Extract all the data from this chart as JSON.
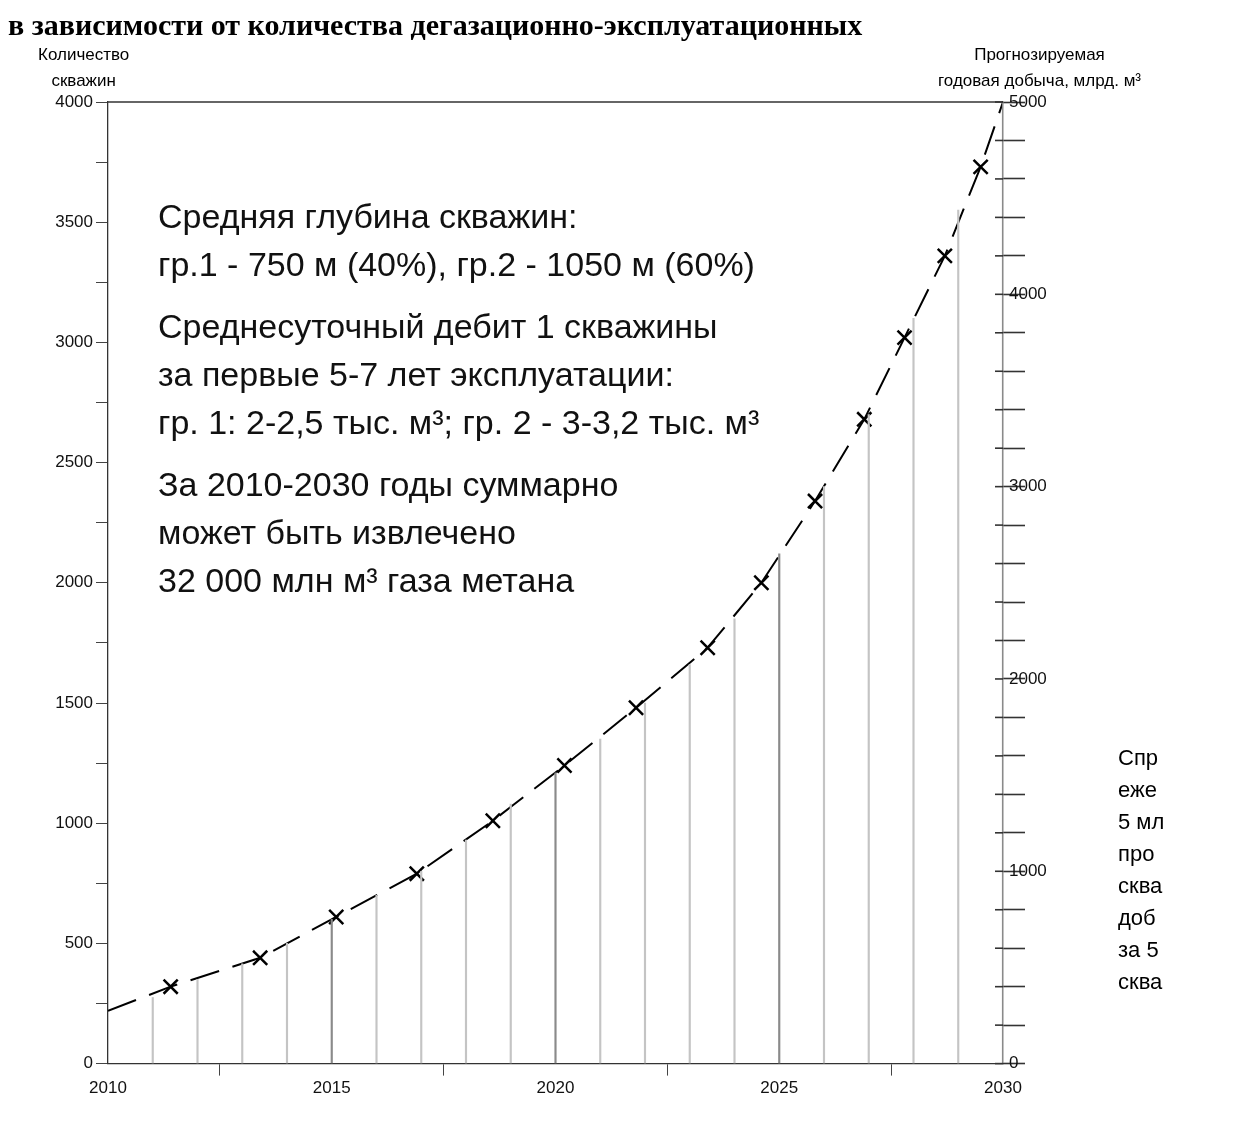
{
  "chart_data": {
    "type": "line",
    "title": "в зависимости от количества дегазационно-эксплуатационных",
    "xlabel": null,
    "ylabel": "Количество\nскважин",
    "y2label": "Прогнозируемая\nгодовая добыча, млрд. м³",
    "xlim": [
      2010,
      2030
    ],
    "xticks": [
      2010,
      2015,
      2020,
      2025,
      2030
    ],
    "ylim": [
      0,
      4000
    ],
    "yticks": [
      0,
      {
        "value": 250,
        "label": null
      },
      500,
      {
        "value": 750,
        "label": null
      },
      1000,
      {
        "value": 1250,
        "label": null
      },
      1500,
      {
        "value": 1750,
        "label": null
      },
      2000,
      {
        "value": 2250,
        "label": null
      },
      2500,
      {
        "value": 2750,
        "label": null
      },
      3000,
      {
        "value": 3250,
        "label": null
      },
      3500,
      {
        "value": 3750,
        "label": null
      },
      4000
    ],
    "y2lim": [
      0,
      5000
    ],
    "y2ticks": [
      0,
      {
        "value": 200,
        "label": null
      },
      {
        "value": 400,
        "label": null
      },
      {
        "value": 600,
        "label": null
      },
      {
        "value": 800,
        "label": null
      },
      1000,
      {
        "value": 1200,
        "label": null
      },
      {
        "value": 1400,
        "label": null
      },
      {
        "value": 1600,
        "label": null
      },
      {
        "value": 1800,
        "label": null
      },
      2000,
      {
        "value": 2200,
        "label": null
      },
      {
        "value": 2400,
        "label": null
      },
      {
        "value": 2600,
        "label": null
      },
      {
        "value": 2800,
        "label": null
      },
      3000,
      {
        "value": 3200,
        "label": null
      },
      {
        "value": 3400,
        "label": null
      },
      {
        "value": 3600,
        "label": null
      },
      {
        "value": 3800,
        "label": null
      },
      4000,
      {
        "value": 4200,
        "label": null
      },
      {
        "value": 4400,
        "label": null
      },
      {
        "value": 4600,
        "label": null
      },
      {
        "value": 4800,
        "label": null
      },
      5000
    ],
    "grid": false,
    "legend": false,
    "series": [
      {
        "type": "bar",
        "colors": [
          "#c4c4c4",
          "#c4c4c4",
          "#c4c4c4",
          "#c4c4c4",
          "#8a8a8a",
          "#c4c4c4",
          "#c4c4c4",
          "#c4c4c4",
          "#c4c4c4",
          "#8a8a8a",
          "#c4c4c4",
          "#c4c4c4",
          "#c4c4c4",
          "#c4c4c4",
          "#8a8a8a",
          "#c4c4c4",
          "#c4c4c4",
          "#c4c4c4",
          "#c4c4c4",
          "#8a8a8a"
        ],
        "x": [
          2011,
          2012,
          2013,
          2014,
          2015,
          2016,
          2017,
          2018,
          2019,
          2020,
          2021,
          2022,
          2023,
          2024,
          2025,
          2026,
          2027,
          2028,
          2029,
          2030
        ],
        "values": [
          275,
          350,
          415,
          500,
          600,
          700,
          800,
          930,
          1080,
          1210,
          1350,
          1500,
          1660,
          1850,
          2120,
          2400,
          2700,
          3100,
          3550,
          4000
        ]
      },
      {
        "color": "#000000",
        "line_style": "dashed",
        "marker": "none",
        "x": [
          2010,
          2011.4,
          2013.4,
          2015.1,
          2016.9,
          2018.6,
          2020.2,
          2021.8,
          2023.4,
          2024.6,
          2025.8,
          2026.9,
          2027.8,
          2028.7,
          2029.5,
          2030
        ],
        "values": [
          220,
          320,
          440,
          610,
          790,
          1010,
          1240,
          1480,
          1730,
          2000,
          2340,
          2680,
          3020,
          3360,
          3730,
          4000
        ]
      },
      {
        "type": "scatter",
        "color": "#000000",
        "marker": "cross",
        "x": [
          2011.4,
          2013.4,
          2015.1,
          2016.9,
          2018.6,
          2020.2,
          2021.8,
          2023.4,
          2024.6,
          2025.8,
          2026.9,
          2027.8,
          2028.7,
          2029.5
        ],
        "values": [
          320,
          440,
          610,
          790,
          1010,
          1240,
          1480,
          1730,
          2000,
          2340,
          2680,
          3020,
          3360,
          3730
        ]
      }
    ],
    "annotations": [
      "Средняя глубина скважин:\nгр.1 - 750 м (40%), гр.2 - 1050 м (60%)",
      "Среднесуточный дебит 1 скважины\nза первые 5-7 лет эксплуатации:\nгр. 1: 2-2,5 тыс. м³; гр. 2 - 3-3,2 тыс. м³",
      "За 2010-2030 годы суммарно\nможет быть извлечено\n32 000 млн м³ газа метана",
      "Спр\nеже\n5 мл\nпро\nсква\nдоб\nза 5\nсква"
    ]
  }
}
